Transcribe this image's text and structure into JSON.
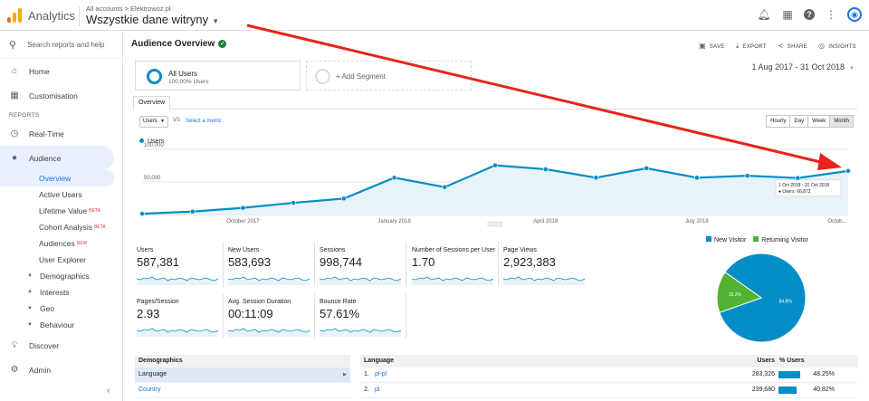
{
  "header": {
    "app_name": "Analytics",
    "breadcrumb": "All accounts > Elektrowoz.pl",
    "property": "Wszystkie dane witryny"
  },
  "sidebar": {
    "search_placeholder": "Search reports and help",
    "home": "Home",
    "customisation": "Customisation",
    "reports_section": "REPORTS",
    "realtime": "Real-Time",
    "audience": "Audience",
    "audience_items": [
      {
        "label": "Overview",
        "badge": ""
      },
      {
        "label": "Active Users",
        "badge": ""
      },
      {
        "label": "Lifetime Value",
        "badge": "BETA"
      },
      {
        "label": "Cohort Analysis",
        "badge": "BETA"
      },
      {
        "label": "Audiences",
        "badge": "NEW"
      },
      {
        "label": "User Explorer",
        "badge": ""
      }
    ],
    "audience_groups": [
      "Demographics",
      "Interests",
      "Geo",
      "Behaviour"
    ],
    "discover": "Discover",
    "admin": "Admin"
  },
  "main": {
    "title": "Audience Overview",
    "toolbar": {
      "save": "SAVE",
      "export": "EXPORT",
      "share": "SHARE",
      "insights": "INSIGHTS"
    },
    "segment": {
      "name": "All Users",
      "pct": "100.00% Users"
    },
    "add_segment": "+ Add Segment",
    "date_range": "1 Aug 2017 - 31 Oct 2018",
    "tab": "Overview",
    "metric_select": "Users",
    "vs": "VS",
    "select_metric": "Select a metric",
    "granularity": [
      "Hourly",
      "Day",
      "Week",
      "Month"
    ],
    "granularity_selected": "Month",
    "legend": "Users"
  },
  "chart_data": {
    "type": "area",
    "series": [
      {
        "name": "Users",
        "values": [
          1200,
          4500,
          10200,
          18000,
          24500,
          56500,
          42000,
          75500,
          69500,
          56500,
          71000,
          56500,
          59500,
          56000,
          66872
        ]
      }
    ],
    "x_tick_labels": [
      "October 2017",
      "January 2018",
      "April 2018",
      "July 2018",
      "Octob..."
    ],
    "y_tick_labels": [
      "100,000",
      "50,000"
    ],
    "ylim": [
      0,
      100000
    ],
    "color": "#058dc7",
    "tooltip": {
      "range": "1 Oct 2018 - 31 Oct 2018",
      "label": "Users: 66,872"
    }
  },
  "scorecards": [
    {
      "label": "Users",
      "value": "587,381"
    },
    {
      "label": "New Users",
      "value": "583,693"
    },
    {
      "label": "Sessions",
      "value": "998,744"
    },
    {
      "label": "Number of Sessions per User",
      "value": "1.70"
    },
    {
      "label": "Page Views",
      "value": "2,923,383"
    },
    {
      "label": "Pages/Session",
      "value": "2.93"
    },
    {
      "label": "Avg. Session Duration",
      "value": "00:11:09"
    },
    {
      "label": "Bounce Rate",
      "value": "57.61%"
    }
  ],
  "pie": {
    "legend": [
      {
        "name": "New Visitor",
        "color": "#058dc7"
      },
      {
        "name": "Returning Visitor",
        "color": "#50b432"
      }
    ],
    "values": [
      84.8,
      15.2
    ],
    "labels": [
      "84.8%",
      "15.2%"
    ]
  },
  "demographics": {
    "header": "Demographics",
    "rows": [
      "Language",
      "Country"
    ],
    "selected": "Language"
  },
  "language_table": {
    "header": "Language",
    "col_users": "Users",
    "col_pct": "% Users",
    "rows": [
      {
        "idx": "1.",
        "name": "pl-pl",
        "users": "283,326",
        "pct": "48.25%",
        "fraction": 0.4825
      },
      {
        "idx": "2.",
        "name": "pl",
        "users": "239,680",
        "pct": "40.82%",
        "fraction": 0.4082
      }
    ]
  }
}
